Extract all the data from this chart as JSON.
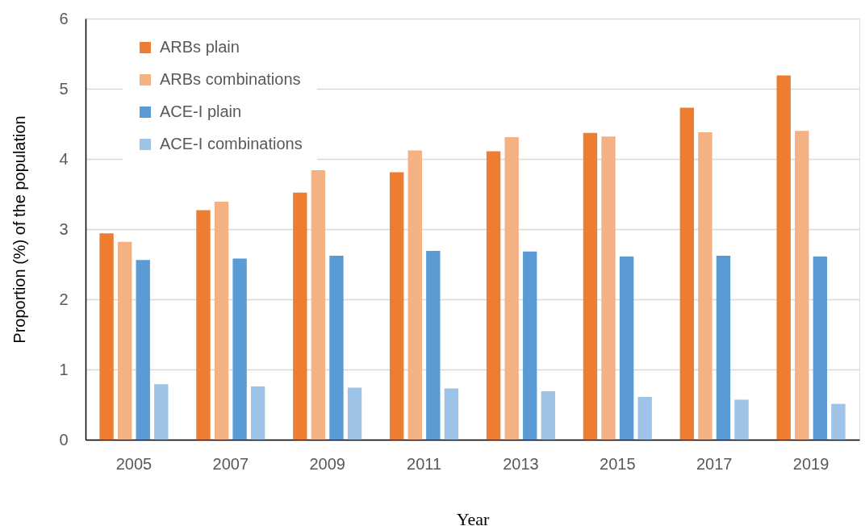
{
  "chart_data": {
    "type": "bar",
    "xlabel": "Year",
    "ylabel": "Proportion (%) of the population",
    "categories": [
      "2005",
      "2007",
      "2009",
      "2011",
      "2013",
      "2015",
      "2017",
      "2019"
    ],
    "series": [
      {
        "name": "ARBs plain",
        "color": "#ed7d31",
        "values": [
          2.94,
          3.27,
          3.52,
          3.81,
          4.11,
          4.37,
          4.73,
          5.19
        ]
      },
      {
        "name": "ARBs combinations",
        "color": "#f4b183",
        "values": [
          2.82,
          3.39,
          3.84,
          4.12,
          4.31,
          4.32,
          4.38,
          4.4
        ]
      },
      {
        "name": "ACE-I plain",
        "color": "#5b9bd5",
        "values": [
          2.56,
          2.58,
          2.62,
          2.69,
          2.68,
          2.61,
          2.62,
          2.61
        ]
      },
      {
        "name": "ACE-I combinations",
        "color": "#9dc3e6",
        "values": [
          0.79,
          0.76,
          0.74,
          0.73,
          0.69,
          0.61,
          0.57,
          0.51
        ]
      }
    ],
    "ylim": [
      0,
      6
    ],
    "yticks": [
      0,
      1,
      2,
      3,
      4,
      5,
      6
    ],
    "grid": "y",
    "legend": "top left"
  }
}
